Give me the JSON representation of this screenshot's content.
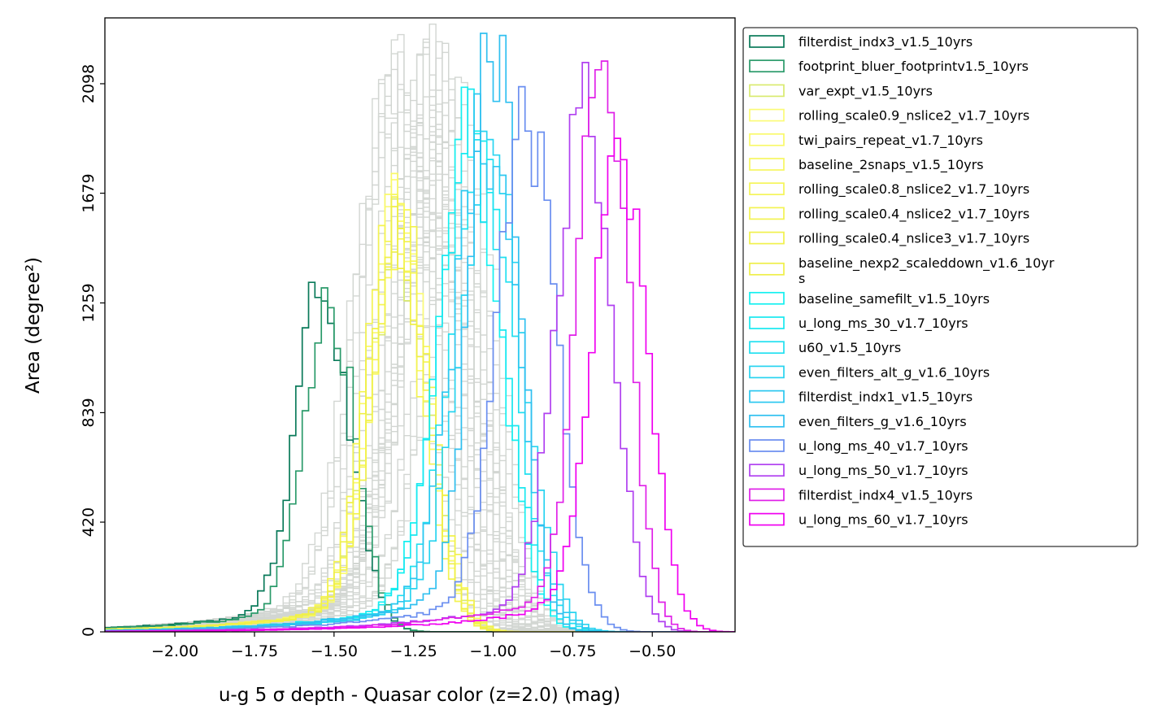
{
  "chart_data": {
    "type": "histogram-step",
    "xlabel": "u-g 5 σ depth - Quasar color (z=2.0) (mag)",
    "ylabel": "Area (degree²)",
    "xlim": [
      -2.22,
      -0.24
    ],
    "ylim": [
      0,
      2350
    ],
    "xticks": [
      -2.0,
      -1.75,
      -1.5,
      -1.25,
      -1.0,
      -0.75,
      -0.5
    ],
    "xtick_labels": [
      "−2.00",
      "−1.75",
      "−1.50",
      "−1.25",
      "−1.00",
      "−0.75",
      "−0.50"
    ],
    "yticks": [
      0,
      420,
      839,
      1259,
      1679,
      2098
    ],
    "ytick_labels": [
      "0",
      "420",
      "839",
      "1259",
      "1679",
      "2098"
    ],
    "grid": false,
    "legend_placement": "outside-right",
    "background_runs": {
      "color": "#d2d6d2",
      "count": 40,
      "peak_range_x": [
        -1.33,
        -1.08
      ],
      "peak_range_y": [
        1450,
        2030
      ],
      "sigma": 0.11
    },
    "series": [
      {
        "name": "filterdist_indx3_v1.5_10yrs",
        "color": "#0a7a5a",
        "peak_x": -1.53,
        "peak_y": 1260,
        "sigma": 0.085
      },
      {
        "name": "footprint_bluer_footprintv1.5_10yrs",
        "color": "#2a9a6a",
        "peak_x": -1.51,
        "peak_y": 1220,
        "sigma": 0.08
      },
      {
        "name": "var_expt_v1.5_10yrs",
        "color": "#d9ea70",
        "peak_x": -1.29,
        "peak_y": 1430,
        "sigma": 0.09
      },
      {
        "name": "rolling_scale0.9_nslice2_v1.7_10yrs",
        "color": "#fbfb78",
        "peak_x": -1.29,
        "peak_y": 1520,
        "sigma": 0.085
      },
      {
        "name": "twi_pairs_repeat_v1.7_10yrs",
        "color": "#f9f96a",
        "peak_x": -1.3,
        "peak_y": 1500,
        "sigma": 0.09
      },
      {
        "name": "baseline_2snaps_v1.5_10yrs",
        "color": "#f7f760",
        "peak_x": -1.28,
        "peak_y": 1480,
        "sigma": 0.09
      },
      {
        "name": "rolling_scale0.8_nslice2_v1.7_10yrs",
        "color": "#f5f558",
        "peak_x": -1.29,
        "peak_y": 1510,
        "sigma": 0.088
      },
      {
        "name": "rolling_scale0.4_nslice2_v1.7_10yrs",
        "color": "#f3f352",
        "peak_x": -1.31,
        "peak_y": 1460,
        "sigma": 0.09
      },
      {
        "name": "rolling_scale0.4_nslice3_v1.7_10yrs",
        "color": "#f1f14c",
        "peak_x": -1.28,
        "peak_y": 1490,
        "sigma": 0.092
      },
      {
        "name": "baseline_nexp2_scaleddown_v1.6_10yrs",
        "display_name": [
          "baseline_nexp2_scaleddown_v1.6_10yr",
          "s"
        ],
        "color": "#efef48",
        "peak_x": -1.3,
        "peak_y": 1470,
        "sigma": 0.09
      },
      {
        "name": "baseline_samefilt_v1.5_10yrs",
        "color": "#14f0f0",
        "peak_x": -1.07,
        "peak_y": 1790,
        "sigma": 0.1
      },
      {
        "name": "u_long_ms_30_v1.7_10yrs",
        "color": "#18e8f0",
        "peak_x": -1.06,
        "peak_y": 1880,
        "sigma": 0.1
      },
      {
        "name": "u60_v1.5_10yrs",
        "color": "#20e0f0",
        "peak_x": -1.03,
        "peak_y": 1700,
        "sigma": 0.1
      },
      {
        "name": "even_filters_alt_g_v1.6_10yrs",
        "color": "#28d4f0",
        "peak_x": -1.0,
        "peak_y": 1750,
        "sigma": 0.1
      },
      {
        "name": "filterdist_indx1_v1.5_10yrs",
        "color": "#2cc8f0",
        "peak_x": -1.02,
        "peak_y": 1820,
        "sigma": 0.1
      },
      {
        "name": "even_filters_g_v1.6_10yrs",
        "color": "#30c0f0",
        "peak_x": -0.99,
        "peak_y": 2250,
        "sigma": 0.075
      },
      {
        "name": "u_long_ms_40_v1.7_10yrs",
        "color": "#6a8ef0",
        "peak_x": -0.89,
        "peak_y": 1930,
        "sigma": 0.09
      },
      {
        "name": "u_long_ms_50_v1.7_10yrs",
        "color": "#b040f0",
        "peak_x": -0.71,
        "peak_y": 2000,
        "sigma": 0.085
      },
      {
        "name": "filterdist_indx4_v1.5_10yrs",
        "color": "#e020e8",
        "peak_x": -0.65,
        "peak_y": 2200,
        "sigma": 0.075
      },
      {
        "name": "u_long_ms_60_v1.7_10yrs",
        "color": "#f000f0",
        "peak_x": -0.6,
        "peak_y": 1800,
        "sigma": 0.085
      }
    ]
  }
}
